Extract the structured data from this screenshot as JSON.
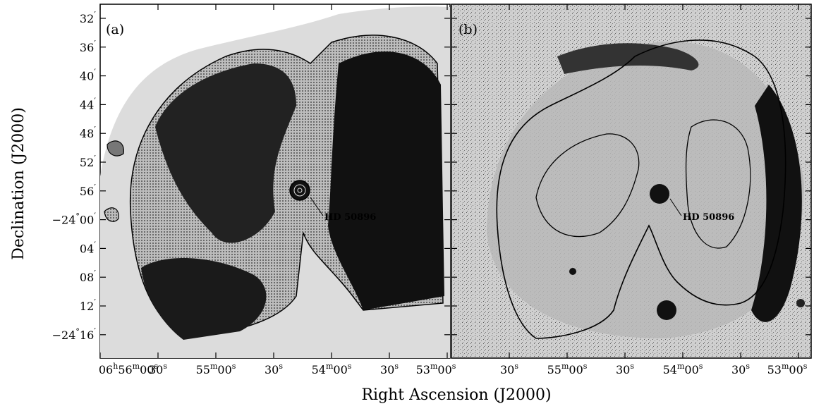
{
  "figure": {
    "y_axis_label": "Declination (J2000)",
    "x_axis_label": "Right Ascension (J2000)",
    "y_ticks": [
      {
        "deg": "",
        "min": "32",
        "dec_value": -23.5333
      },
      {
        "deg": "",
        "min": "36",
        "dec_value": -23.6
      },
      {
        "deg": "",
        "min": "40",
        "dec_value": -23.6667
      },
      {
        "deg": "",
        "min": "44",
        "dec_value": -23.7333
      },
      {
        "deg": "",
        "min": "48",
        "dec_value": -23.8
      },
      {
        "deg": "",
        "min": "52",
        "dec_value": -23.8667
      },
      {
        "deg": "",
        "min": "56",
        "dec_value": -23.9333
      },
      {
        "deg": "−24",
        "min": "00",
        "dec_value": -24.0
      },
      {
        "deg": "",
        "min": "04",
        "dec_value": -24.0667
      },
      {
        "deg": "",
        "min": "08",
        "dec_value": -24.1333
      },
      {
        "deg": "",
        "min": "12",
        "dec_value": -24.2
      },
      {
        "deg": "−24",
        "min": "16",
        "dec_value": -24.2667
      }
    ],
    "panels": [
      {
        "label": "(a)",
        "star_label": "HD 50896",
        "x_ticks": [
          {
            "h": "06",
            "m": "56",
            "s": "00"
          },
          {
            "h": "",
            "m": "",
            "s": "30"
          },
          {
            "h": "",
            "m": "55",
            "s": "00"
          },
          {
            "h": "",
            "m": "",
            "s": "30"
          },
          {
            "h": "",
            "m": "54",
            "s": "00"
          },
          {
            "h": "",
            "m": "",
            "s": "30"
          },
          {
            "h": "",
            "m": "53",
            "s": "00"
          }
        ]
      },
      {
        "label": "(b)",
        "star_label": "HD 50896",
        "x_ticks": [
          {
            "h": "",
            "m": "",
            "s": "30"
          },
          {
            "h": "",
            "m": "55",
            "s": "00"
          },
          {
            "h": "",
            "m": "",
            "s": "30"
          },
          {
            "h": "",
            "m": "54",
            "s": "00"
          },
          {
            "h": "",
            "m": "",
            "s": "30"
          },
          {
            "h": "",
            "m": "53",
            "s": "00"
          }
        ]
      }
    ],
    "colors": {
      "ink": "#000000",
      "background": "#ffffff",
      "mid_gray": "#8a8a8a",
      "light_gray": "#c8c8c8"
    }
  }
}
